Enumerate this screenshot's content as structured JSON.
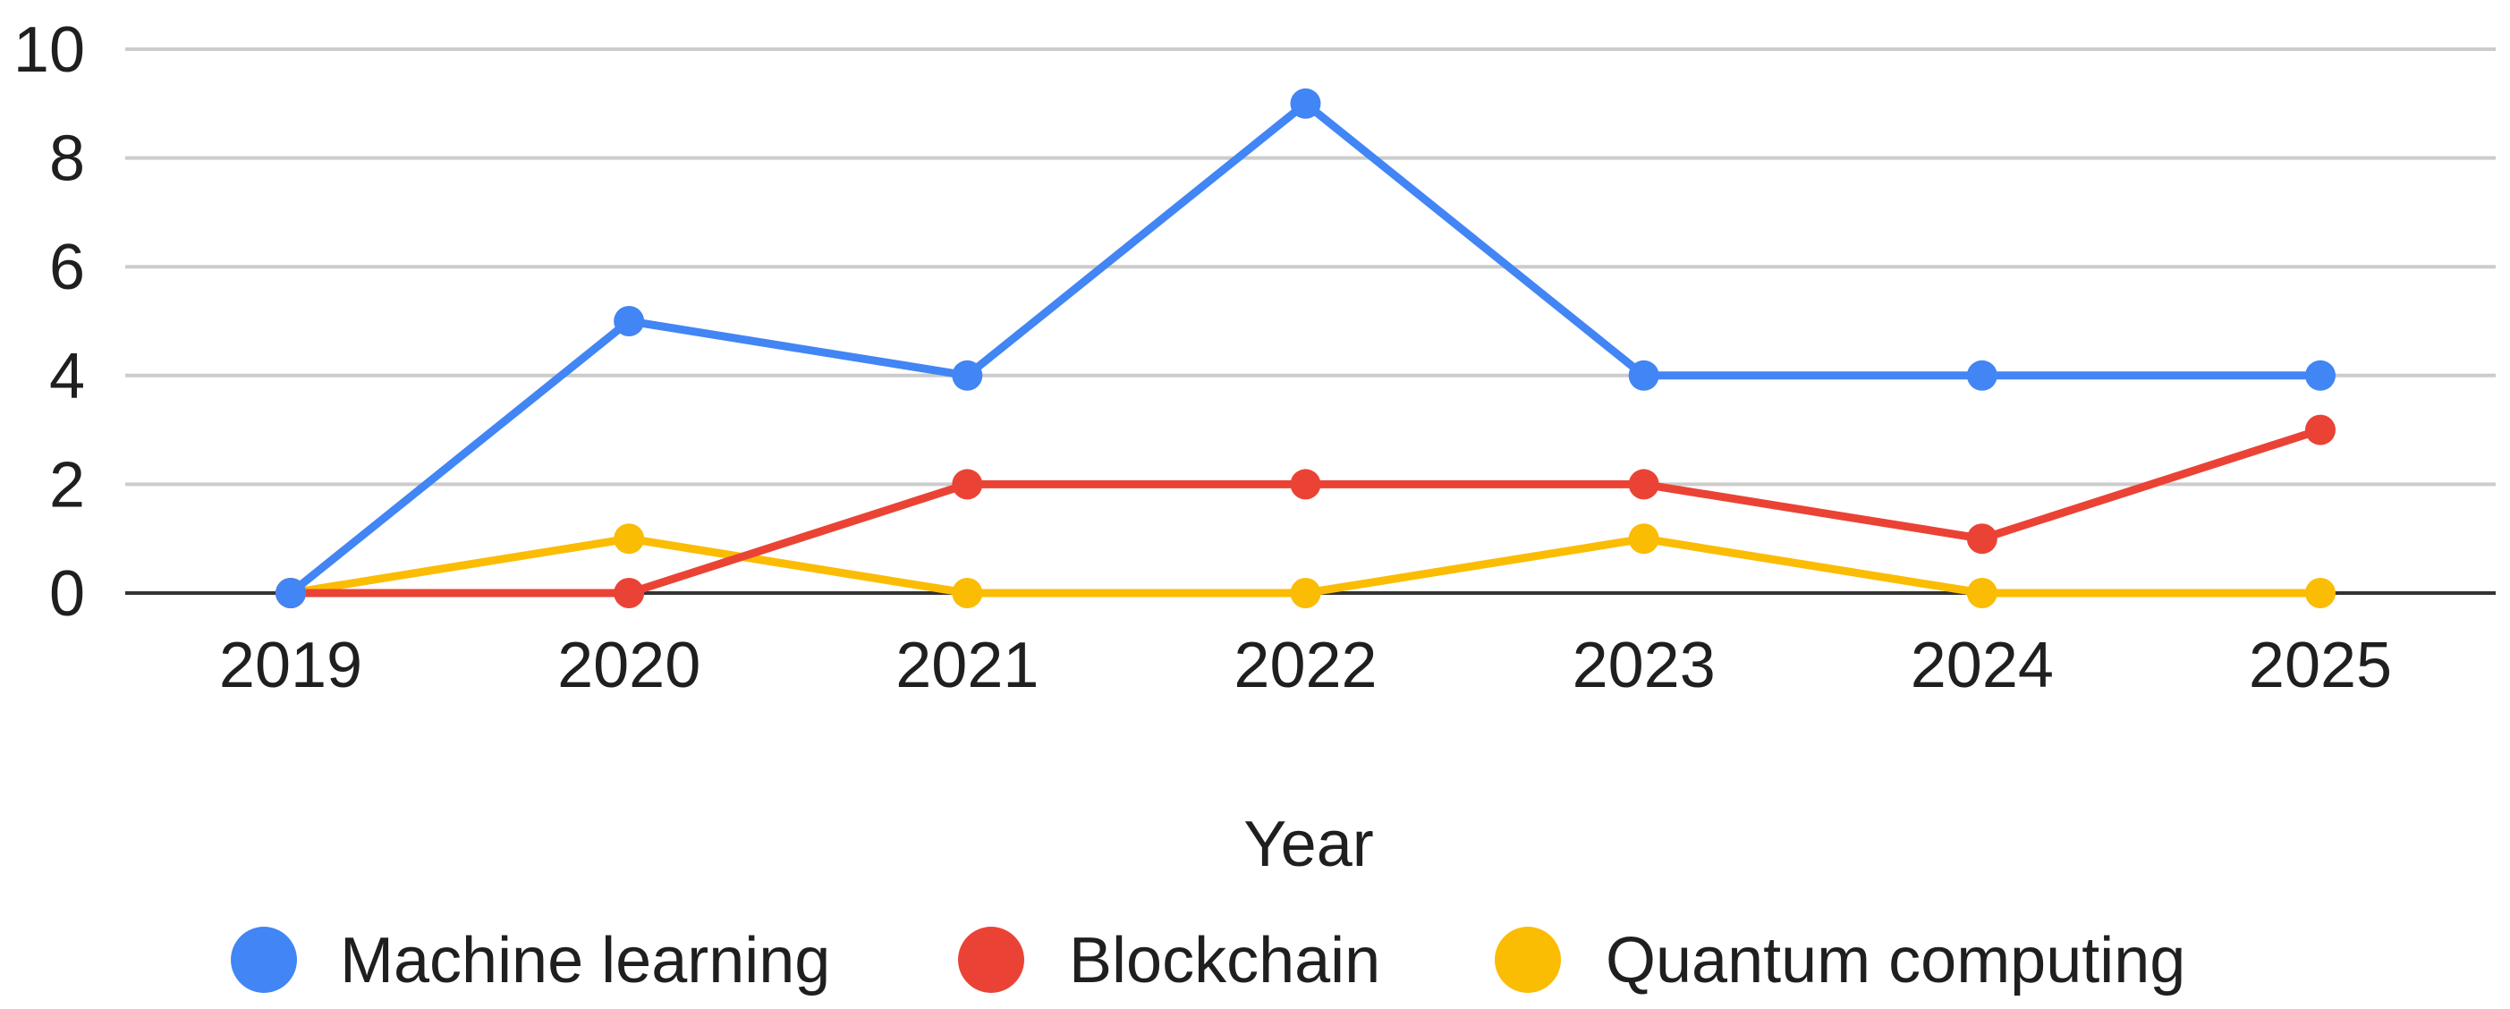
{
  "chart_data": {
    "type": "line",
    "title": "",
    "xlabel": "Year",
    "ylabel": "",
    "categories": [
      "2019",
      "2020",
      "2021",
      "2022",
      "2023",
      "2024",
      "2025"
    ],
    "series": [
      {
        "name": "Machine learning",
        "color": "#4285f4",
        "values": [
          0,
          5,
          4,
          9,
          4,
          4,
          4
        ]
      },
      {
        "name": "Blockchain",
        "color": "#ea4335",
        "values": [
          0,
          0,
          2,
          2,
          2,
          1,
          3
        ]
      },
      {
        "name": "Quantum computing",
        "color": "#fbbc04",
        "values": [
          0,
          1,
          0,
          0,
          1,
          0,
          0
        ]
      }
    ],
    "ylim": [
      0,
      10
    ],
    "yticks": [
      "0",
      "2",
      "4",
      "6",
      "8",
      "10"
    ],
    "grid": true,
    "legend_position": "bottom"
  },
  "colors": {
    "gridline": "#cccccc",
    "baseline": "#333333",
    "text": "#1f1f1f"
  }
}
